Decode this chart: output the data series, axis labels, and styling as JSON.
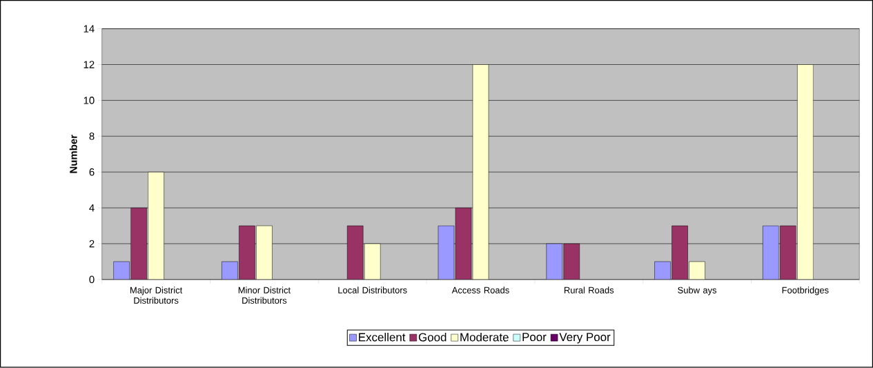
{
  "chart_data": {
    "type": "bar",
    "ylabel": "Number",
    "categories": [
      "Major District Distributors",
      "Minor District Distributors",
      "Local Distributors",
      "Access Roads",
      "Rural Roads",
      "Subw ays",
      "Footbridges"
    ],
    "series": [
      {
        "name": "Excellent",
        "color": "#9999ff",
        "values": [
          1,
          1,
          0,
          3,
          2,
          1,
          3
        ]
      },
      {
        "name": "Good",
        "color": "#993366",
        "values": [
          4,
          3,
          3,
          4,
          2,
          3,
          3
        ]
      },
      {
        "name": "Moderate",
        "color": "#ffffcc",
        "values": [
          6,
          3,
          2,
          12,
          0,
          1,
          12
        ]
      },
      {
        "name": "Poor",
        "color": "#ccffff",
        "values": [
          0,
          0,
          0,
          0,
          0,
          0,
          0
        ]
      },
      {
        "name": "Very Poor",
        "color": "#660066",
        "values": [
          0,
          0,
          0,
          0,
          0,
          0,
          0
        ]
      }
    ],
    "ylim": [
      0,
      14
    ],
    "yticks": [
      0,
      2,
      4,
      6,
      8,
      10,
      12,
      14
    ],
    "grid": "y",
    "legend": "bottom"
  }
}
